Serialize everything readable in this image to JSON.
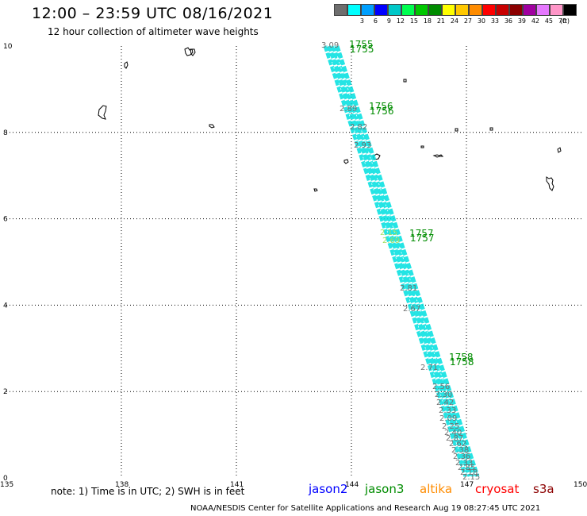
{
  "header": {
    "title": "12:00 – 23:59 UTC 08/16/2021",
    "subtitle": "12 hour collection of altimeter wave heights"
  },
  "legend_scale": {
    "unit_label": "(ft)",
    "bins": [
      {
        "label": "",
        "color": "#6e6e6e"
      },
      {
        "label": "3",
        "color": "#00ffff"
      },
      {
        "label": "6",
        "color": "#00a0ff"
      },
      {
        "label": "9",
        "color": "#0000ff"
      },
      {
        "label": "12",
        "color": "#00c8c8"
      },
      {
        "label": "15",
        "color": "#00ff50"
      },
      {
        "label": "18",
        "color": "#00c800"
      },
      {
        "label": "21",
        "color": "#008c00"
      },
      {
        "label": "24",
        "color": "#ffff00"
      },
      {
        "label": "27",
        "color": "#ffc800"
      },
      {
        "label": "30",
        "color": "#ff8c00"
      },
      {
        "label": "33",
        "color": "#ff0000"
      },
      {
        "label": "36",
        "color": "#c80000"
      },
      {
        "label": "39",
        "color": "#8c0000"
      },
      {
        "label": "42",
        "color": "#a000a0"
      },
      {
        "label": "45",
        "color": "#e678ff"
      },
      {
        "label": "70",
        "color": "#ff96c8"
      },
      {
        "label": "",
        "color": "#000000"
      }
    ]
  },
  "map": {
    "lon_ticks": [
      "135",
      "138",
      "141",
      "144",
      "147",
      "150"
    ],
    "lat_ticks": [
      "0",
      "2",
      "4",
      "6",
      "8",
      "10"
    ],
    "track_color": "#00e0e0",
    "pass_time_labels": [
      "1755",
      "1756",
      "1757",
      "1758"
    ],
    "pass_time_color": "#008c00",
    "swh_gray_readings": [
      "3.09",
      "2.89",
      "2.82",
      "2.93",
      "2.81",
      "2.67",
      "2.71",
      "2.56",
      "2.30",
      "2.42",
      "2.33",
      "2.09",
      "2.25",
      "2.40",
      "2.87",
      "2.62",
      "2.38",
      "2.36",
      "2.33",
      "2.85",
      "2.18",
      "2.15"
    ],
    "swh_green_readings": [
      "2.15",
      "2.69"
    ]
  },
  "footer": {
    "note": "note:  1) Time is in UTC;  2) SWH is in feet",
    "satellites": [
      {
        "name": "jason2",
        "color": "#0000ff"
      },
      {
        "name": "jason3",
        "color": "#008c00"
      },
      {
        "name": "altika",
        "color": "#ff8c00"
      },
      {
        "name": "cryosat",
        "color": "#ff0000"
      },
      {
        "name": "s3a",
        "color": "#8c0000"
      }
    ],
    "credit": "NOAA/NESDIS Center for Satellite Applications and Research    Aug 19 08:27:45 UTC 2021"
  }
}
